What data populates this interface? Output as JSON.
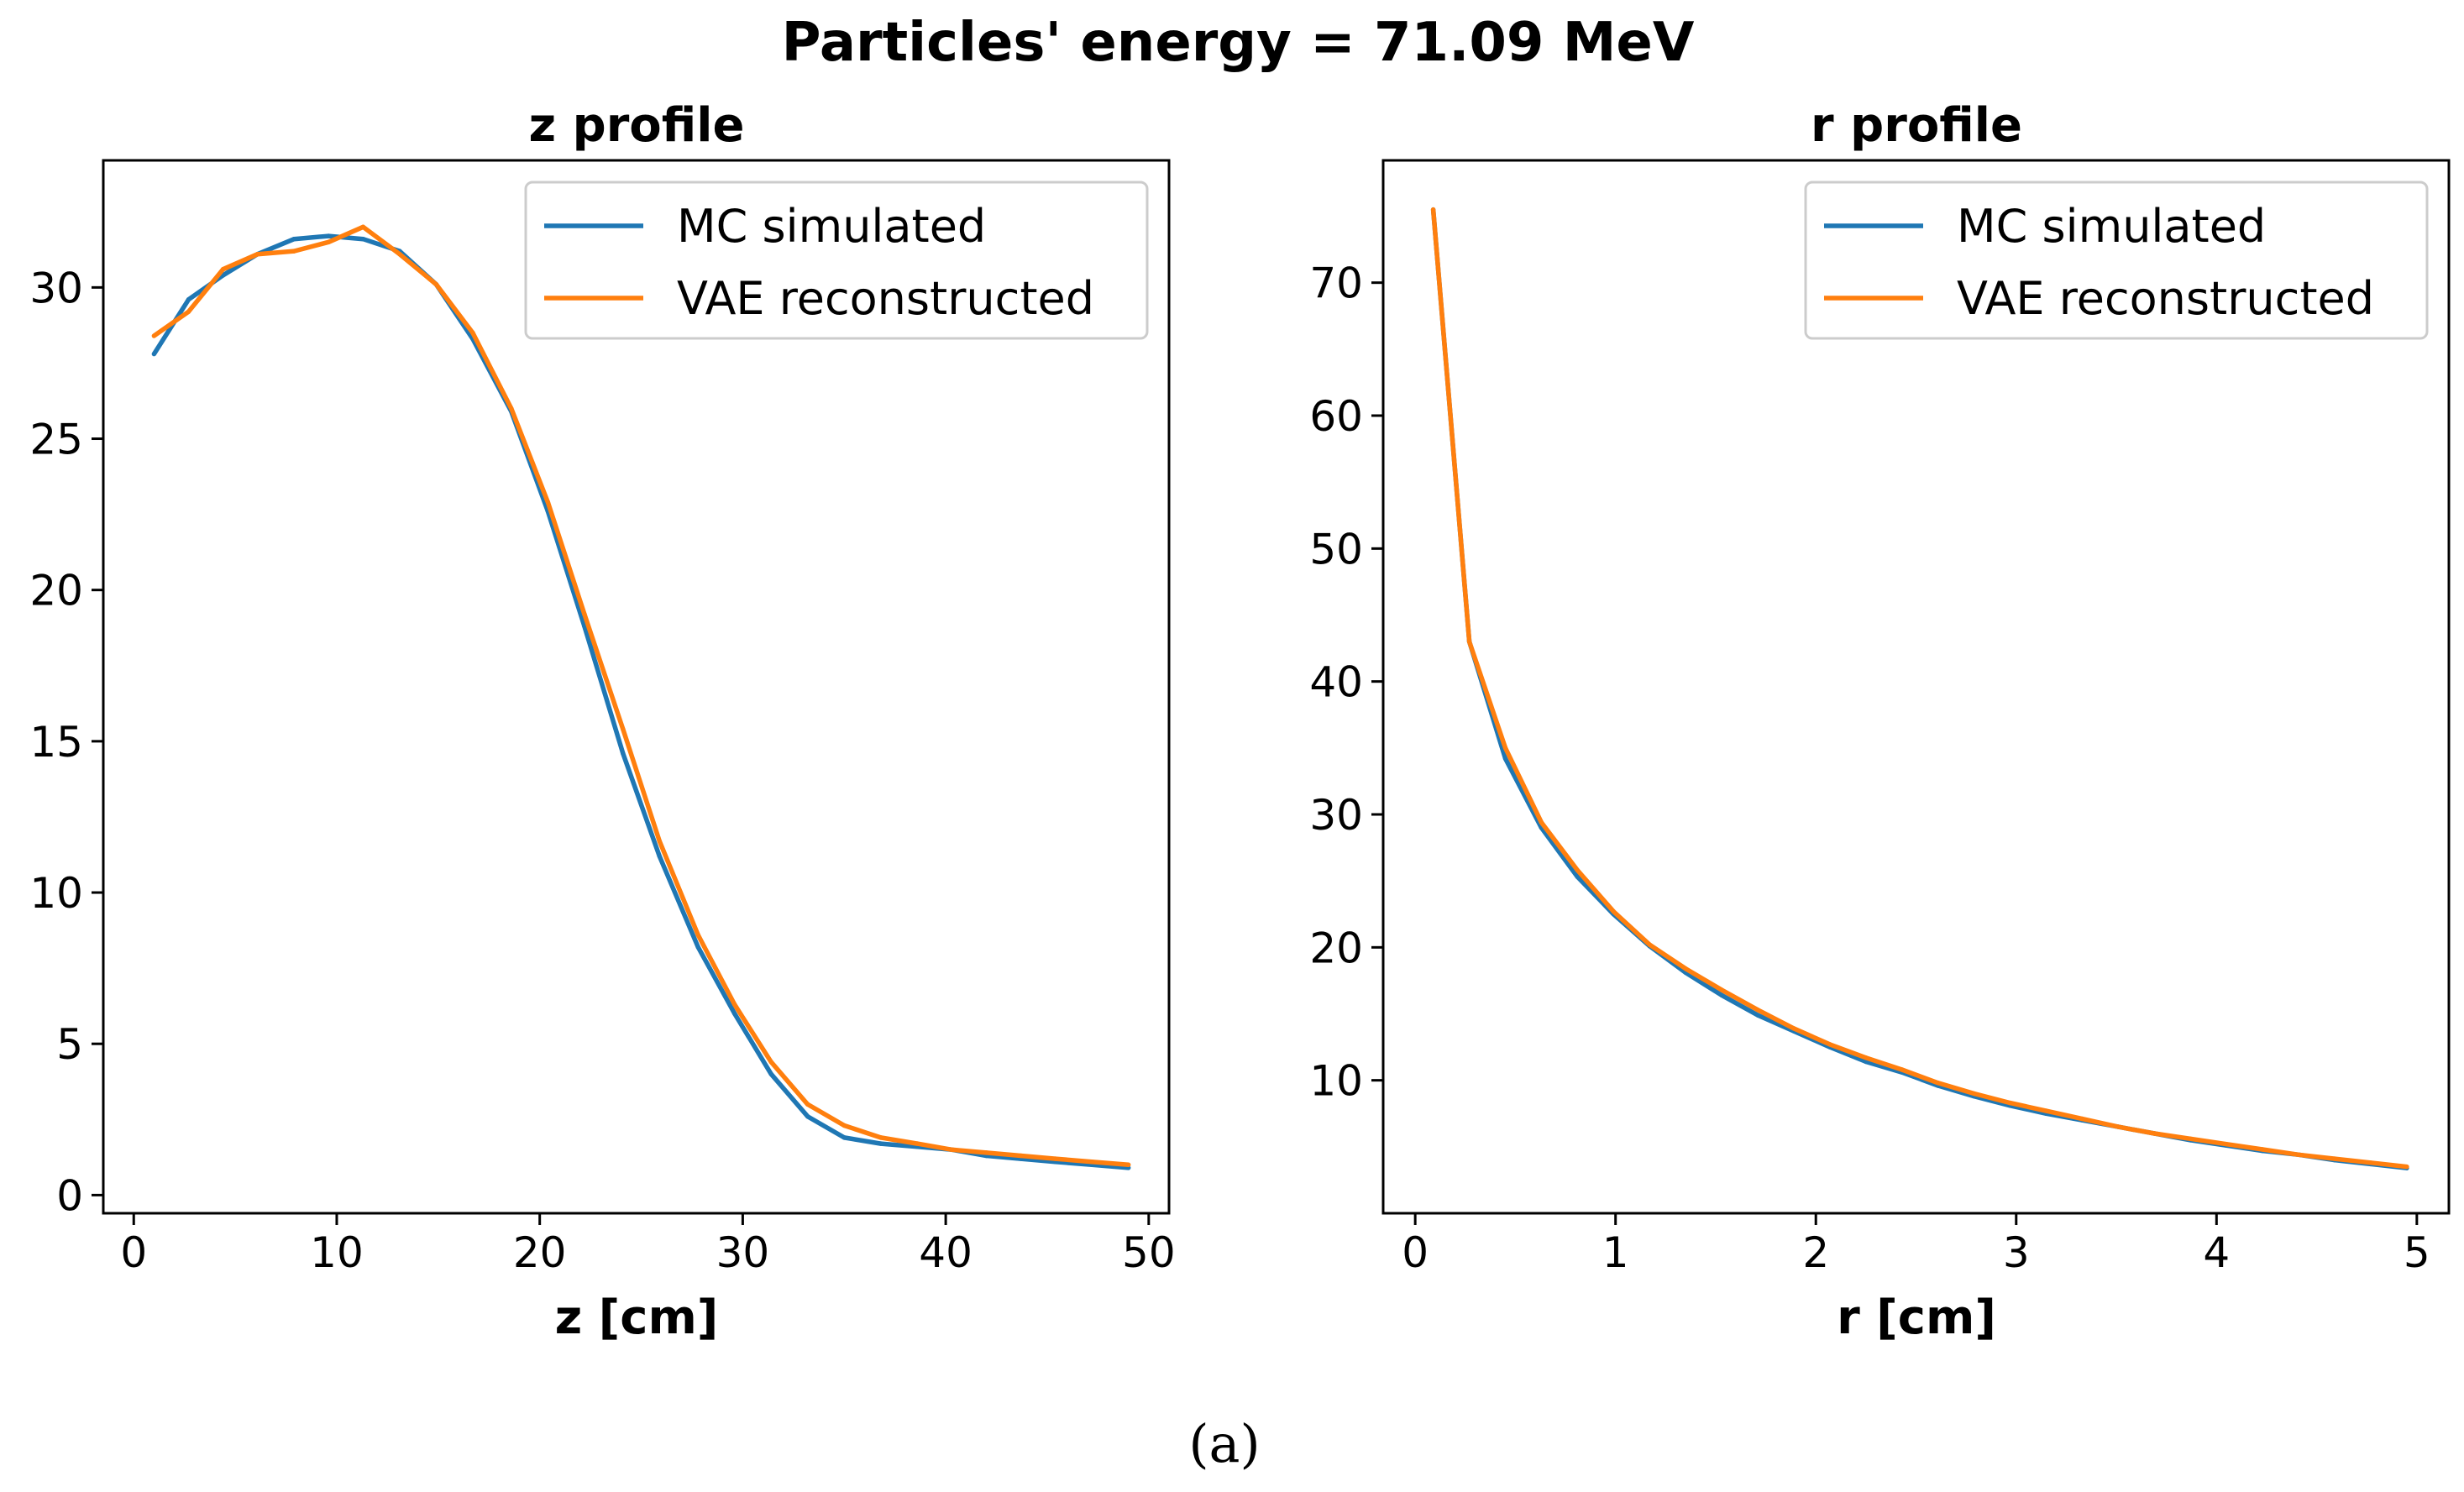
{
  "figure": {
    "title": "Particles' energy = 71.09 MeV",
    "caption": "(a)"
  },
  "chart_data": [
    {
      "type": "line",
      "title": "z profile",
      "xlabel": "z [cm]",
      "ylabel": "",
      "xlim": [
        -1.5,
        51.0
      ],
      "ylim": [
        -0.6,
        34.2
      ],
      "xticks": [
        0,
        10,
        20,
        30,
        40,
        50
      ],
      "yticks": [
        0,
        5,
        10,
        15,
        20,
        25,
        30
      ],
      "grid": false,
      "legend": "top-right",
      "series": [
        {
          "name": "MC simulated",
          "color": "#1f77b4",
          "x": [
            1.0,
            2.7,
            4.4,
            6.1,
            7.9,
            9.6,
            11.3,
            13.1,
            14.9,
            16.7,
            18.6,
            20.4,
            22.2,
            24.1,
            25.9,
            27.8,
            29.6,
            31.4,
            33.2,
            35.0,
            36.8,
            38.6,
            40.3,
            42.0,
            43.7,
            45.4,
            47.2,
            49.0
          ],
          "y": [
            27.8,
            29.6,
            30.4,
            31.1,
            31.6,
            31.7,
            31.6,
            31.2,
            30.1,
            28.3,
            25.9,
            22.6,
            18.8,
            14.6,
            11.2,
            8.2,
            6.0,
            4.0,
            2.6,
            1.9,
            1.7,
            1.6,
            1.5,
            1.3,
            1.2,
            1.1,
            1.0,
            0.9
          ]
        },
        {
          "name": "VAE reconstructed",
          "color": "#ff7f0e",
          "x": [
            1.0,
            2.7,
            4.4,
            6.1,
            7.9,
            9.6,
            11.3,
            13.1,
            14.9,
            16.7,
            18.6,
            20.4,
            22.2,
            24.1,
            25.9,
            27.8,
            29.6,
            31.4,
            33.2,
            35.0,
            36.8,
            38.6,
            40.3,
            42.0,
            43.7,
            45.4,
            47.2,
            49.0
          ],
          "y": [
            28.4,
            29.2,
            30.6,
            31.1,
            31.2,
            31.5,
            32.0,
            31.1,
            30.1,
            28.5,
            26.0,
            22.9,
            19.2,
            15.4,
            11.7,
            8.6,
            6.3,
            4.4,
            3.0,
            2.3,
            1.9,
            1.7,
            1.5,
            1.4,
            1.3,
            1.2,
            1.1,
            1.0
          ]
        }
      ]
    },
    {
      "type": "line",
      "title": "r profile",
      "xlabel": "r [cm]",
      "ylabel": "",
      "xlim": [
        -0.16,
        5.16
      ],
      "ylim": [
        0.0,
        79.2
      ],
      "xticks": [
        0,
        1,
        2,
        3,
        4,
        5
      ],
      "yticks": [
        10,
        20,
        30,
        40,
        50,
        60,
        70
      ],
      "grid": false,
      "legend": "top-right",
      "series": [
        {
          "name": "MC simulated",
          "color": "#1f77b4",
          "x": [
            0.09,
            0.27,
            0.45,
            0.63,
            0.81,
            0.99,
            1.17,
            1.35,
            1.53,
            1.71,
            1.89,
            2.07,
            2.25,
            2.43,
            2.61,
            2.79,
            2.97,
            3.15,
            3.33,
            3.51,
            3.69,
            3.87,
            4.05,
            4.23,
            4.41,
            4.59,
            4.77,
            4.95
          ],
          "y": [
            75.5,
            43.0,
            34.2,
            29.0,
            25.3,
            22.5,
            20.1,
            18.1,
            16.4,
            14.9,
            13.7,
            12.5,
            11.4,
            10.6,
            9.6,
            8.8,
            8.1,
            7.5,
            7.0,
            6.5,
            6.0,
            5.5,
            5.1,
            4.7,
            4.4,
            4.0,
            3.7,
            3.4
          ]
        },
        {
          "name": "VAE reconstructed",
          "color": "#ff7f0e",
          "x": [
            0.09,
            0.27,
            0.45,
            0.63,
            0.81,
            0.99,
            1.17,
            1.35,
            1.53,
            1.71,
            1.89,
            2.07,
            2.25,
            2.43,
            2.61,
            2.79,
            2.97,
            3.15,
            3.33,
            3.51,
            3.69,
            3.87,
            4.05,
            4.23,
            4.41,
            4.59,
            4.77,
            4.95
          ],
          "y": [
            75.5,
            43.0,
            35.0,
            29.4,
            25.8,
            22.7,
            20.2,
            18.4,
            16.8,
            15.3,
            13.9,
            12.7,
            11.7,
            10.8,
            9.8,
            9.0,
            8.3,
            7.7,
            7.1,
            6.5,
            6.0,
            5.6,
            5.2,
            4.8,
            4.4,
            4.1,
            3.8,
            3.5
          ]
        }
      ]
    }
  ]
}
